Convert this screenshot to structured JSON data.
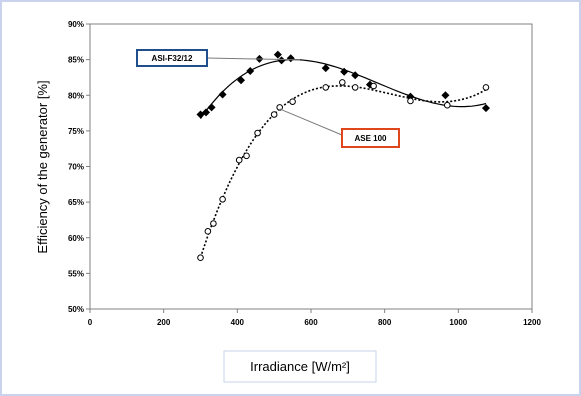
{
  "chart_data": {
    "type": "scatter",
    "xlabel": "Irradiance [W/m²]",
    "ylabel": "Efficiency of the generator [%]",
    "xlim": [
      0,
      1200
    ],
    "ylim": [
      50,
      90
    ],
    "x_ticks": [
      0,
      200,
      400,
      600,
      800,
      1000,
      1200
    ],
    "x_tick_labels": [
      "0",
      "200",
      "400",
      "600",
      "800",
      "1000",
      "1200"
    ],
    "y_ticks": [
      50,
      55,
      60,
      65,
      70,
      75,
      80,
      85,
      90
    ],
    "y_tick_labels": [
      "50%",
      "55%",
      "60%",
      "65%",
      "70%",
      "75%",
      "80%",
      "85%",
      "90%"
    ],
    "grid": false,
    "series": [
      {
        "name": "ASI-F32/12",
        "marker": "filled-diamond",
        "trendline": "solid",
        "color": "#000000",
        "callout_border": "#1f4e8c",
        "points": [
          [
            300,
            77.3
          ],
          [
            315,
            77.6
          ],
          [
            330,
            78.3
          ],
          [
            360,
            80.1
          ],
          [
            410,
            82.1
          ],
          [
            435,
            83.4
          ],
          [
            460,
            85.1
          ],
          [
            510,
            85.7
          ],
          [
            520,
            84.9
          ],
          [
            545,
            85.2
          ],
          [
            640,
            83.8
          ],
          [
            690,
            83.3
          ],
          [
            720,
            82.8
          ],
          [
            760,
            81.5
          ],
          [
            870,
            79.8
          ],
          [
            965,
            80.0
          ],
          [
            1075,
            78.2
          ]
        ]
      },
      {
        "name": "ASE 100",
        "marker": "open-circle",
        "trendline": "dotted",
        "color": "#000000",
        "callout_border": "#e0461c",
        "points": [
          [
            300,
            57.2
          ],
          [
            320,
            60.9
          ],
          [
            335,
            62.0
          ],
          [
            360,
            65.4
          ],
          [
            405,
            70.9
          ],
          [
            425,
            71.5
          ],
          [
            455,
            74.7
          ],
          [
            500,
            77.3
          ],
          [
            515,
            78.3
          ],
          [
            550,
            79.1
          ],
          [
            640,
            81.1
          ],
          [
            685,
            81.8
          ],
          [
            720,
            81.1
          ],
          [
            770,
            81.3
          ],
          [
            870,
            79.2
          ],
          [
            970,
            78.6
          ],
          [
            1075,
            81.1
          ]
        ]
      }
    ]
  }
}
